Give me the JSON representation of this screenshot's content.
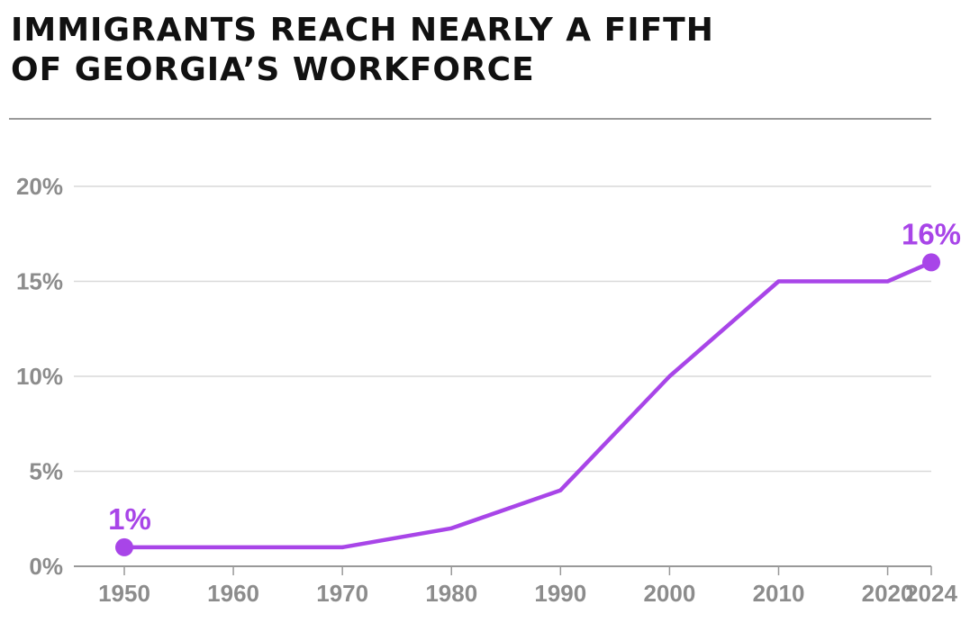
{
  "title_lines": [
    "IMMIGRANTS REACH NEARLY A FIFTH",
    "OF GEORGIA’S WORKFORCE"
  ],
  "chart_data": {
    "type": "line",
    "title": "IMMIGRANTS REACH NEARLY A FIFTH OF GEORGIA’S WORKFORCE",
    "xlabel": "",
    "ylabel": "",
    "x": [
      1950,
      1960,
      1970,
      1980,
      1990,
      2000,
      2010,
      2020,
      2024
    ],
    "series": [
      {
        "values": [
          1,
          1,
          1,
          2,
          4,
          10,
          15,
          15,
          16
        ]
      }
    ],
    "ylim": [
      0,
      20
    ],
    "y_ticks": [
      0,
      5,
      10,
      15,
      20
    ],
    "y_tick_labels": [
      "0%",
      "5%",
      "10%",
      "15%",
      "20%"
    ],
    "x_tick_labels": [
      "1950",
      "1960",
      "1970",
      "1980",
      "1990",
      "2000",
      "2010",
      "2020",
      "2024"
    ],
    "annotations": [
      {
        "x": 1950,
        "y": 1,
        "text": "1%"
      },
      {
        "x": 2024,
        "y": 16,
        "text": "16%"
      }
    ],
    "grid": true,
    "legend": "none",
    "line_color": "#a845e8",
    "grid_color": "#d9d9d9",
    "tick_label_color": "#8c8c8c"
  }
}
